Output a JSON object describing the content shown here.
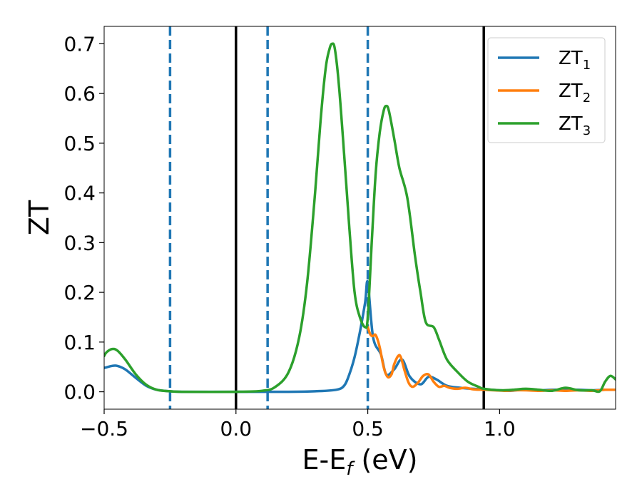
{
  "chart_data": {
    "type": "line",
    "xlabel": "E-E",
    "xlabel_sub": "f",
    "xlabel_unit": " (eV)",
    "ylabel": "ZT",
    "xlim": [
      -0.5,
      1.44
    ],
    "ylim": [
      -0.035,
      0.735
    ],
    "x_ticks": [
      -0.5,
      0.0,
      0.5,
      1.0
    ],
    "x_tick_labels": [
      "−0.5",
      "0.0",
      "0.5",
      "1.0"
    ],
    "y_ticks": [
      0.0,
      0.1,
      0.2,
      0.3,
      0.4,
      0.5,
      0.6,
      0.7
    ],
    "y_tick_labels": [
      "0.0",
      "0.1",
      "0.2",
      "0.3",
      "0.4",
      "0.5",
      "0.6",
      "0.7"
    ],
    "grid": false,
    "legend_position": "top-right",
    "vlines": [
      {
        "x": -0.25,
        "style": "dashed",
        "color": "#1f77b4"
      },
      {
        "x": 0.0,
        "style": "solid",
        "color": "#000000"
      },
      {
        "x": 0.12,
        "style": "dashed",
        "color": "#1f77b4"
      },
      {
        "x": 0.5,
        "style": "dashed",
        "color": "#1f77b4"
      },
      {
        "x": 0.94,
        "style": "solid",
        "color": "#000000"
      }
    ],
    "series": [
      {
        "name": "ZT",
        "sub": "1",
        "color": "#1f77b4",
        "x": [
          -0.5,
          -0.47,
          -0.45,
          -0.42,
          -0.38,
          -0.34,
          -0.3,
          -0.25,
          -0.2,
          0.0,
          0.2,
          0.3,
          0.38,
          0.41,
          0.43,
          0.45,
          0.47,
          0.49,
          0.5,
          0.52,
          0.55,
          0.57,
          0.6,
          0.63,
          0.66,
          0.7,
          0.73,
          0.76,
          0.8,
          0.85,
          0.9,
          0.94,
          1.0,
          1.04,
          1.1,
          1.15,
          1.2,
          1.25,
          1.3,
          1.35,
          1.4,
          1.44
        ],
        "y": [
          0.048,
          0.052,
          0.052,
          0.045,
          0.028,
          0.012,
          0.004,
          0.001,
          0.0,
          0.0,
          0.0,
          0.001,
          0.004,
          0.012,
          0.035,
          0.07,
          0.12,
          0.18,
          0.22,
          0.11,
          0.075,
          0.035,
          0.045,
          0.065,
          0.03,
          0.015,
          0.03,
          0.025,
          0.012,
          0.008,
          0.006,
          0.005,
          0.003,
          0.002,
          0.005,
          0.003,
          0.004,
          0.004,
          0.004,
          0.003,
          0.004,
          0.004
        ]
      },
      {
        "name": "ZT",
        "sub": "2",
        "color": "#ff7f0e",
        "x": [
          0.5,
          0.51,
          0.52,
          0.53,
          0.545,
          0.56,
          0.575,
          0.59,
          0.6,
          0.615,
          0.625,
          0.64,
          0.655,
          0.67,
          0.69,
          0.71,
          0.73,
          0.75,
          0.77,
          0.79,
          0.81,
          0.84,
          0.87,
          0.9,
          0.94,
          0.98,
          1.02,
          1.06,
          1.1,
          1.15,
          1.2,
          1.25,
          1.3,
          1.35,
          1.4,
          1.44
        ],
        "y": [
          0.13,
          0.115,
          0.112,
          0.114,
          0.09,
          0.05,
          0.03,
          0.035,
          0.055,
          0.072,
          0.07,
          0.042,
          0.018,
          0.01,
          0.018,
          0.032,
          0.035,
          0.02,
          0.01,
          0.012,
          0.008,
          0.006,
          0.008,
          0.005,
          0.004,
          0.003,
          0.002,
          0.003,
          0.003,
          0.002,
          0.003,
          0.002,
          0.003,
          0.002,
          0.004,
          0.004
        ]
      },
      {
        "name": "ZT",
        "sub": "3",
        "color": "#2ca02c",
        "x": [
          -0.5,
          -0.49,
          -0.47,
          -0.45,
          -0.42,
          -0.38,
          -0.34,
          -0.3,
          -0.25,
          -0.2,
          0.0,
          0.1,
          0.15,
          0.2,
          0.24,
          0.27,
          0.3,
          0.32,
          0.34,
          0.355,
          0.365,
          0.375,
          0.39,
          0.41,
          0.43,
          0.45,
          0.47,
          0.49,
          0.5,
          0.515,
          0.53,
          0.545,
          0.56,
          0.57,
          0.58,
          0.6,
          0.62,
          0.65,
          0.68,
          0.7,
          0.72,
          0.75,
          0.77,
          0.8,
          0.84,
          0.88,
          0.92,
          0.94,
          1.0,
          1.05,
          1.1,
          1.15,
          1.2,
          1.25,
          1.3,
          1.35,
          1.38,
          1.4,
          1.42,
          1.44
        ],
        "y": [
          0.072,
          0.08,
          0.086,
          0.083,
          0.065,
          0.035,
          0.014,
          0.004,
          0.001,
          0.0,
          0.0,
          0.002,
          0.01,
          0.04,
          0.11,
          0.22,
          0.4,
          0.54,
          0.65,
          0.69,
          0.7,
          0.69,
          0.62,
          0.48,
          0.33,
          0.2,
          0.15,
          0.13,
          0.15,
          0.3,
          0.44,
          0.52,
          0.565,
          0.575,
          0.565,
          0.51,
          0.45,
          0.39,
          0.27,
          0.2,
          0.14,
          0.13,
          0.105,
          0.065,
          0.04,
          0.02,
          0.01,
          0.006,
          0.003,
          0.004,
          0.006,
          0.004,
          0.002,
          0.008,
          0.003,
          0.003,
          0.001,
          0.02,
          0.032,
          0.025
        ]
      }
    ]
  }
}
